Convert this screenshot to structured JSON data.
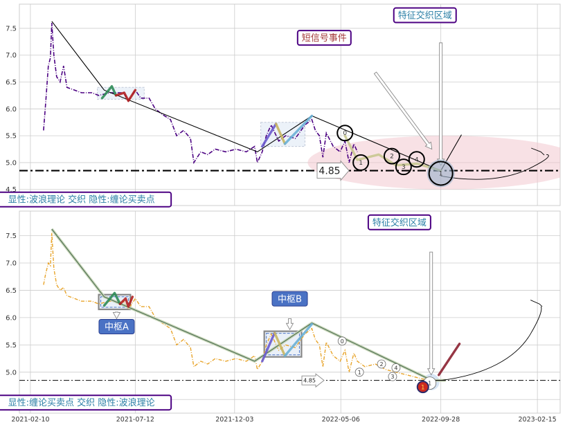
{
  "chart_data": [
    {
      "type": "line",
      "panel": "top",
      "ylim": [
        4.2,
        7.95
      ],
      "yticks": [
        4.5,
        5.0,
        5.5,
        6.0,
        6.5,
        7.0,
        7.5
      ],
      "support_level": 4.85,
      "support_label": "4.85",
      "grid": true,
      "price_color": "#4b0082",
      "price_series": [
        [
          "2021-03-01",
          5.6
        ],
        [
          "2021-03-04",
          6.1
        ],
        [
          "2021-03-08",
          6.8
        ],
        [
          "2021-03-11",
          6.95
        ],
        [
          "2021-03-13",
          7.6
        ],
        [
          "2021-03-16",
          7.0
        ],
        [
          "2021-03-20",
          6.6
        ],
        [
          "2021-03-25",
          6.5
        ],
        [
          "2021-03-30",
          6.8
        ],
        [
          "2021-04-04",
          6.4
        ],
        [
          "2021-04-15",
          6.35
        ],
        [
          "2021-04-25",
          6.3
        ],
        [
          "2021-05-10",
          6.3
        ],
        [
          "2021-05-20",
          6.25
        ],
        [
          "2021-06-05",
          6.3
        ],
        [
          "2021-06-15",
          6.3
        ],
        [
          "2021-06-25",
          6.3
        ],
        [
          "2021-07-02",
          6.15
        ],
        [
          "2021-07-12",
          6.35
        ],
        [
          "2021-07-20",
          6.2
        ],
        [
          "2021-08-01",
          6.2
        ],
        [
          "2021-08-10",
          6.0
        ],
        [
          "2021-08-20",
          5.9
        ],
        [
          "2021-09-01",
          5.8
        ],
        [
          "2021-09-10",
          5.5
        ],
        [
          "2021-09-20",
          5.6
        ],
        [
          "2021-09-30",
          5.45
        ],
        [
          "2021-10-05",
          5.0
        ],
        [
          "2021-10-15",
          5.2
        ],
        [
          "2021-10-25",
          5.15
        ],
        [
          "2021-11-05",
          5.25
        ],
        [
          "2021-11-20",
          5.2
        ],
        [
          "2021-12-05",
          5.25
        ],
        [
          "2021-12-20",
          5.2
        ],
        [
          "2022-01-01",
          5.3
        ],
        [
          "2022-01-05",
          5.0
        ],
        [
          "2022-01-12",
          5.2
        ],
        [
          "2022-01-18",
          5.5
        ],
        [
          "2022-01-25",
          5.7
        ],
        [
          "2022-02-05",
          5.4
        ],
        [
          "2022-02-15",
          5.5
        ],
        [
          "2022-03-01",
          5.45
        ],
        [
          "2022-03-15",
          5.7
        ],
        [
          "2022-03-25",
          5.8
        ],
        [
          "2022-03-30",
          5.6
        ],
        [
          "2022-04-05",
          5.5
        ],
        [
          "2022-04-10",
          5.1
        ],
        [
          "2022-04-15",
          5.55
        ],
        [
          "2022-04-25",
          5.3
        ],
        [
          "2022-05-05",
          5.2
        ],
        [
          "2022-05-12",
          5.4
        ],
        [
          "2022-05-18",
          5.0
        ],
        [
          "2022-05-25",
          5.35
        ],
        [
          "2022-05-30",
          5.2
        ]
      ],
      "wave_lines": [
        {
          "color": "#000000",
          "points": [
            [
              "2021-03-13",
              7.63
            ],
            [
              "2021-05-28",
              6.35
            ],
            [
              "2022-01-05",
              5.2
            ],
            [
              "2022-03-25",
              5.87
            ],
            [
              "2022-09-28",
              4.85
            ],
            [
              "2022-10-28",
              5.52
            ]
          ]
        }
      ],
      "zhongshu_boxes": [
        {
          "x0": "2021-05-18",
          "x1": "2021-07-25",
          "y0": 6.18,
          "y1": 6.4
        },
        {
          "x0": "2022-01-10",
          "x1": "2022-03-15",
          "y0": 5.3,
          "y1": 5.75
        }
      ],
      "highlight_strokes": [
        {
          "color": "#2e8b57",
          "points": [
            [
              "2021-05-25",
              6.2
            ],
            [
              "2021-06-08",
              6.42
            ],
            [
              "2021-06-14",
              6.25
            ]
          ]
        },
        {
          "color": "#b22222",
          "points": [
            [
              "2021-06-14",
              6.25
            ],
            [
              "2021-06-26",
              6.3
            ],
            [
              "2021-07-02",
              6.15
            ],
            [
              "2021-07-12",
              6.35
            ]
          ]
        },
        {
          "color": "#6a5acd",
          "points": [
            [
              "2022-01-12",
              5.3
            ],
            [
              "2022-02-01",
              5.72
            ]
          ]
        },
        {
          "color": "#c8b560",
          "points": [
            [
              "2022-02-01",
              5.72
            ],
            [
              "2022-02-14",
              5.35
            ]
          ]
        },
        {
          "color": "#6ab0d6",
          "points": [
            [
              "2022-02-14",
              5.35
            ],
            [
              "2022-03-25",
              5.87
            ]
          ]
        },
        {
          "color": "#c8c890",
          "points": [
            [
              "2022-05-12",
              5.5
            ],
            [
              "2022-05-30",
              5.05
            ],
            [
              "2022-06-30",
              5.15
            ],
            [
              "2022-07-25",
              4.95
            ],
            [
              "2022-08-25",
              4.98
            ],
            [
              "2022-09-28",
              4.85
            ]
          ]
        }
      ],
      "circles": [
        {
          "x": "2022-05-12",
          "y": 5.55,
          "r": 11,
          "label": "0"
        },
        {
          "x": "2022-06-04",
          "y": 5.0,
          "r": 11,
          "label": "1"
        },
        {
          "x": "2022-07-19",
          "y": 5.12,
          "r": 11,
          "label": "2"
        },
        {
          "x": "2022-08-05",
          "y": 4.92,
          "r": 11,
          "label": "3"
        },
        {
          "x": "2022-08-24",
          "y": 5.06,
          "r": 11,
          "label": "4"
        },
        {
          "x": "2022-09-28",
          "y": 4.8,
          "r": 17,
          "label": "1"
        }
      ],
      "projection_curve": [
        [
          "2022-09-28",
          4.75
        ],
        [
          "2022-11-10",
          4.65
        ],
        [
          "2022-12-28",
          4.65
        ],
        [
          "2023-02-05",
          4.9
        ],
        [
          "2023-02-28",
          5.15
        ]
      ],
      "projection_hook": [
        [
          "2023-02-06",
          5.27
        ],
        [
          "2023-02-20",
          5.2
        ],
        [
          "2023-02-25",
          5.14
        ]
      ],
      "event_zone": {
        "cx": "2022-10-05",
        "cy": 5.0,
        "rx_days": 200,
        "ry": 0.5
      },
      "arrows": [
        {
          "from": [
            "2022-06-25",
            6.67
          ],
          "to": [
            "2022-09-15",
            5.25
          ]
        },
        {
          "from": [
            "2022-09-28",
            7.23
          ],
          "to": [
            "2022-09-28",
            4.95
          ]
        }
      ],
      "annotations": [
        {
          "text": "特征交织区域",
          "x": "2022-09-05",
          "y": 7.75,
          "color": "#2b7fa6"
        },
        {
          "text": "短信号事件",
          "x": "2022-04-12",
          "y": 7.33,
          "color": "#a33a3a"
        },
        {
          "text": "显性:波浪理论 交织 隐性:缠论买卖点",
          "x": "2021-04-25",
          "y": 4.32,
          "color": "#2b7fa6"
        }
      ]
    },
    {
      "type": "line",
      "panel": "bottom",
      "ylim": [
        4.25,
        7.95
      ],
      "yticks": [
        4.5,
        5.0,
        5.5,
        6.0,
        6.5,
        7.0,
        7.5
      ],
      "support_level": 4.85,
      "support_label": "4.85",
      "grid": true,
      "price_color": "#e8a42a",
      "price_series": [
        [
          "2021-03-01",
          6.6
        ],
        [
          "2021-03-04",
          6.8
        ],
        [
          "2021-03-08",
          7.0
        ],
        [
          "2021-03-11",
          6.95
        ],
        [
          "2021-03-13",
          7.55
        ],
        [
          "2021-03-16",
          6.9
        ],
        [
          "2021-03-20",
          6.6
        ],
        [
          "2021-03-25",
          6.5
        ],
        [
          "2021-03-30",
          6.55
        ],
        [
          "2021-04-04",
          6.4
        ],
        [
          "2021-04-15",
          6.35
        ],
        [
          "2021-04-25",
          6.3
        ],
        [
          "2021-05-10",
          6.3
        ],
        [
          "2021-05-20",
          6.25
        ],
        [
          "2021-06-05",
          6.3
        ],
        [
          "2021-06-15",
          6.3
        ],
        [
          "2021-06-25",
          6.3
        ],
        [
          "2021-07-02",
          6.15
        ],
        [
          "2021-07-12",
          6.35
        ],
        [
          "2021-07-20",
          6.2
        ],
        [
          "2021-08-01",
          6.2
        ],
        [
          "2021-08-10",
          6.0
        ],
        [
          "2021-08-20",
          5.9
        ],
        [
          "2021-09-01",
          5.8
        ],
        [
          "2021-09-10",
          5.5
        ],
        [
          "2021-09-20",
          5.6
        ],
        [
          "2021-09-30",
          5.45
        ],
        [
          "2021-10-05",
          5.1
        ],
        [
          "2021-10-15",
          5.2
        ],
        [
          "2021-10-25",
          5.15
        ],
        [
          "2021-11-05",
          5.25
        ],
        [
          "2021-11-20",
          5.2
        ],
        [
          "2021-12-05",
          5.25
        ],
        [
          "2021-12-20",
          5.2
        ],
        [
          "2022-01-01",
          5.3
        ],
        [
          "2022-01-05",
          5.05
        ],
        [
          "2022-01-12",
          5.2
        ],
        [
          "2022-01-18",
          5.5
        ],
        [
          "2022-01-25",
          5.7
        ],
        [
          "2022-02-05",
          5.4
        ],
        [
          "2022-02-15",
          5.5
        ],
        [
          "2022-03-01",
          5.45
        ],
        [
          "2022-03-15",
          5.7
        ],
        [
          "2022-03-25",
          5.8
        ],
        [
          "2022-03-30",
          5.6
        ],
        [
          "2022-04-05",
          5.5
        ],
        [
          "2022-04-10",
          5.1
        ],
        [
          "2022-04-15",
          5.55
        ],
        [
          "2022-04-25",
          5.3
        ],
        [
          "2022-05-05",
          5.2
        ],
        [
          "2022-05-12",
          5.4
        ],
        [
          "2022-05-18",
          5.0
        ],
        [
          "2022-05-25",
          5.35
        ],
        [
          "2022-05-30",
          5.2
        ],
        [
          "2022-06-10",
          5.1
        ],
        [
          "2022-06-25",
          5.15
        ],
        [
          "2022-07-10",
          5.05
        ],
        [
          "2022-07-25",
          5.0
        ],
        [
          "2022-08-10",
          4.95
        ],
        [
          "2022-08-25",
          4.9
        ],
        [
          "2022-09-10",
          4.85
        ]
      ],
      "wave_lines": [
        {
          "color": "#4a6b50",
          "points": [
            [
              "2021-03-13",
              7.62
            ],
            [
              "2021-05-28",
              6.38
            ],
            [
              "2022-01-01",
              5.2
            ],
            [
              "2022-03-25",
              5.9
            ],
            [
              "2022-09-15",
              4.85
            ]
          ]
        },
        {
          "color": "#000000",
          "points": [
            [
              "2022-09-15",
              4.85
            ],
            [
              "2022-10-05",
              4.85
            ]
          ]
        }
      ],
      "zhongshu_boxes": [
        {
          "x0": "2021-05-20",
          "x1": "2021-07-05",
          "y0": 6.15,
          "y1": 6.42
        },
        {
          "x0": "2022-01-15",
          "x1": "2022-03-10",
          "y0": 5.28,
          "y1": 5.75
        }
      ],
      "highlight_strokes": [
        {
          "color": "#2e8b57",
          "points": [
            [
              "2021-05-28",
              6.22
            ],
            [
              "2021-06-12",
              6.45
            ],
            [
              "2021-06-20",
              6.25
            ]
          ]
        },
        {
          "color": "#b22222",
          "points": [
            [
              "2021-06-20",
              6.25
            ],
            [
              "2021-06-28",
              6.35
            ],
            [
              "2021-07-02",
              6.2
            ],
            [
              "2021-07-08",
              6.38
            ]
          ]
        },
        {
          "color": "#6a5acd",
          "points": [
            [
              "2022-01-12",
              5.2
            ],
            [
              "2022-01-30",
              5.72
            ]
          ]
        },
        {
          "color": "#c8b560",
          "points": [
            [
              "2022-01-30",
              5.72
            ],
            [
              "2022-02-14",
              5.3
            ]
          ]
        },
        {
          "color": "#6ab0d6",
          "points": [
            [
              "2022-02-14",
              5.3
            ],
            [
              "2022-03-25",
              5.88
            ]
          ]
        },
        {
          "color": "#8b2030",
          "points": [
            [
              "2022-09-25",
              4.95
            ],
            [
              "2022-10-25",
              5.52
            ]
          ]
        }
      ],
      "circles": [
        {
          "x": "2022-05-08",
          "y": 5.57,
          "r": 6,
          "label": "0"
        },
        {
          "x": "2022-06-02",
          "y": 5.0,
          "r": 6,
          "label": "1"
        },
        {
          "x": "2022-07-04",
          "y": 5.15,
          "r": 6,
          "label": "2"
        },
        {
          "x": "2022-07-20",
          "y": 4.92,
          "r": 6,
          "label": "3"
        },
        {
          "x": "2022-07-25",
          "y": 5.08,
          "r": 6,
          "label": "4"
        },
        {
          "x": "2022-09-12",
          "y": 4.8,
          "r": 9,
          "label": "1"
        }
      ],
      "buy_marker": {
        "x": "2022-09-02",
        "y": 4.73,
        "label": "1"
      },
      "projection_curve": [
        [
          "2022-09-28",
          4.85
        ],
        [
          "2022-12-01",
          4.95
        ],
        [
          "2023-01-15",
          5.25
        ],
        [
          "2023-02-05",
          5.7
        ],
        [
          "2023-02-20",
          6.2
        ]
      ],
      "projection_hook": [
        [
          "2023-02-05",
          6.32
        ],
        [
          "2023-02-18",
          6.25
        ],
        [
          "2023-02-22",
          6.2
        ]
      ],
      "event_zone": {
        "cx": "2022-09-14",
        "cy": 4.82,
        "rx_days": 12,
        "ry": 0.15
      },
      "arrows": [
        {
          "from": [
            "2022-09-14",
            7.2
          ],
          "to": [
            "2022-09-14",
            4.95
          ]
        },
        {
          "from": [
            "2021-06-15",
            6.1
          ],
          "to": [
            "2021-06-15",
            5.98
          ]
        },
        {
          "from": [
            "2022-02-21",
            5.98
          ],
          "to": [
            "2022-02-21",
            5.78
          ]
        }
      ],
      "annotations": [
        {
          "text": "特征交织区域",
          "x": "2022-07-30",
          "y": 7.75,
          "color": "#2b7fa6",
          "style": "outline"
        },
        {
          "text": "中枢A",
          "x": "2021-06-15",
          "y": 5.84,
          "color": "#ffffff",
          "style": "filled"
        },
        {
          "text": "中枢B",
          "x": "2022-02-21",
          "y": 6.35,
          "color": "#ffffff",
          "style": "filled"
        },
        {
          "text": "显性:缠论买卖点 交织 隐性:波浪理论",
          "x": "2021-04-25",
          "y": 4.45,
          "color": "#2b7fa6",
          "style": "outline"
        }
      ]
    }
  ],
  "x_axis": {
    "range": [
      "2021-01-25",
      "2023-03-20"
    ],
    "tick_labels": [
      "2021-02-10",
      "2021-07-12",
      "2021-12-03",
      "2022-05-06",
      "2022-09-28",
      "2023-02-15"
    ]
  },
  "colors": {
    "accent_blue": "#4a72c4",
    "zone_pink": "#f3c9cf",
    "label_border": "#4b0082",
    "grid": "#cccccc"
  }
}
